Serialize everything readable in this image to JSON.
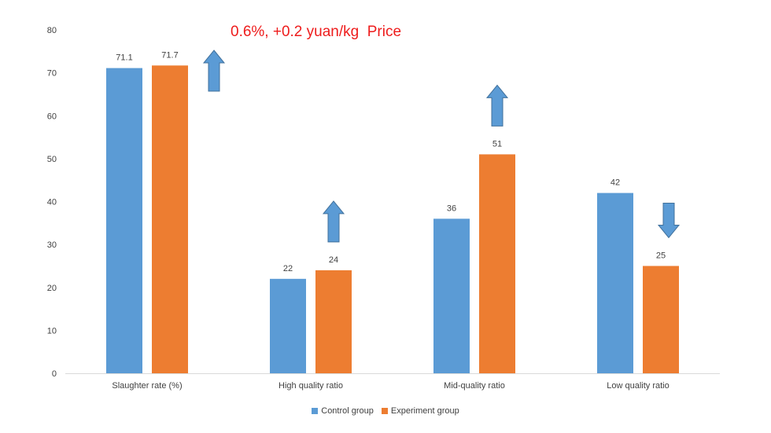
{
  "annotation": "0.6%, +0.2 yuan/kg  Price",
  "legend": {
    "control": "Control group",
    "experiment": "Experiment group"
  },
  "colors": {
    "control": "#5b9bd5",
    "experiment": "#ed7d31",
    "arrow": "#5b9bd5",
    "axis": "#d9d9d9",
    "annotation": "#ee1c1c"
  },
  "chart_data": {
    "type": "bar",
    "categories": [
      "Slaughter rate (%)",
      "High quality ratio",
      "Mid-quality ratio",
      "Low quality ratio"
    ],
    "series": [
      {
        "name": "Control group",
        "values": [
          71.1,
          22,
          36,
          42
        ]
      },
      {
        "name": "Experiment group",
        "values": [
          71.7,
          24,
          51,
          25
        ]
      }
    ],
    "value_labels": [
      [
        "71.1",
        "22",
        "36",
        "42"
      ],
      [
        "71.7",
        "24",
        "51",
        "25"
      ]
    ],
    "ylim": [
      0,
      80
    ],
    "yticks": [
      "0",
      "10",
      "20",
      "30",
      "40",
      "50",
      "60",
      "70",
      "80"
    ],
    "grid": false,
    "legend_position": "bottom",
    "arrows": [
      "up",
      "up",
      "up",
      "down"
    ]
  }
}
